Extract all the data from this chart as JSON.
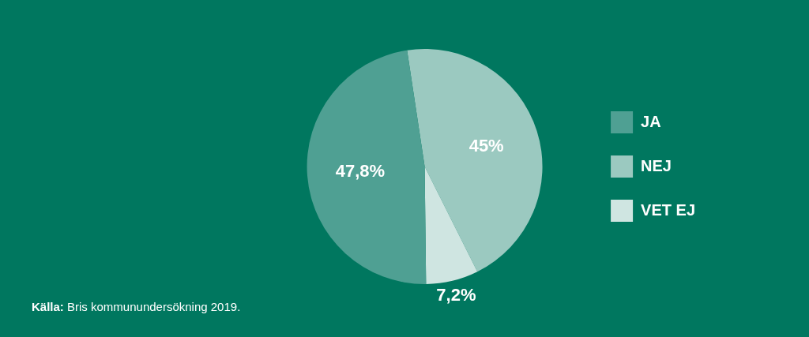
{
  "chart_data": {
    "type": "pie",
    "categories": [
      "JA",
      "NEJ",
      "VET EJ"
    ],
    "values": [
      47.8,
      45,
      7.2
    ],
    "colors": [
      "#4fa093",
      "#9bc9c0",
      "#cfe5e1"
    ],
    "value_labels": [
      "47,8%",
      "45%",
      "7,2%"
    ],
    "legend": "right",
    "annotations": [
      "Källa: Bris kommunundersökning 2019."
    ]
  }
}
